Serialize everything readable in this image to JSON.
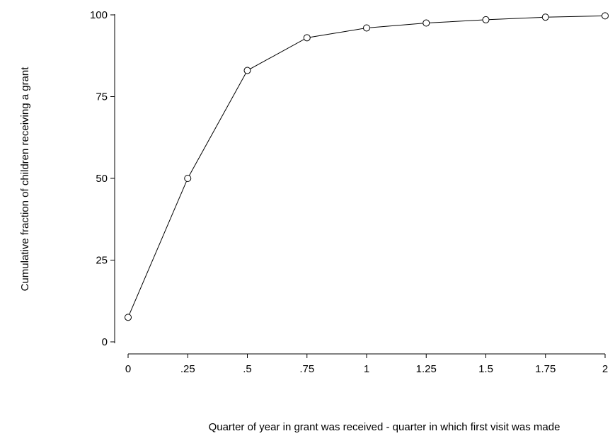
{
  "chart_data": {
    "type": "line",
    "title": "",
    "xlabel": "Quarter of year in grant was received - quarter in which first visit was made",
    "ylabel": "Cumulative fraction of children receiving a grant",
    "xlim": [
      0,
      2
    ],
    "ylim": [
      0,
      100
    ],
    "x_ticks": [
      0,
      0.25,
      0.5,
      0.75,
      1,
      1.25,
      1.5,
      1.75,
      2
    ],
    "x_tick_labels": [
      "0",
      ".25",
      ".5",
      ".75",
      "1",
      "1.25",
      "1.5",
      "1.75",
      "2"
    ],
    "y_ticks": [
      0,
      25,
      50,
      75,
      100
    ],
    "y_tick_labels": [
      "0",
      "25",
      "50",
      "75",
      "100"
    ],
    "grid": false,
    "marker": "hollow-circle",
    "line_color": "#000000",
    "series": [
      {
        "x": [
          0,
          0.25,
          0.5,
          0.75,
          1,
          1.25,
          1.5,
          1.75,
          2
        ],
        "y": [
          7.5,
          50,
          83,
          93,
          96,
          97.5,
          98.5,
          99.3,
          99.7
        ]
      }
    ]
  }
}
